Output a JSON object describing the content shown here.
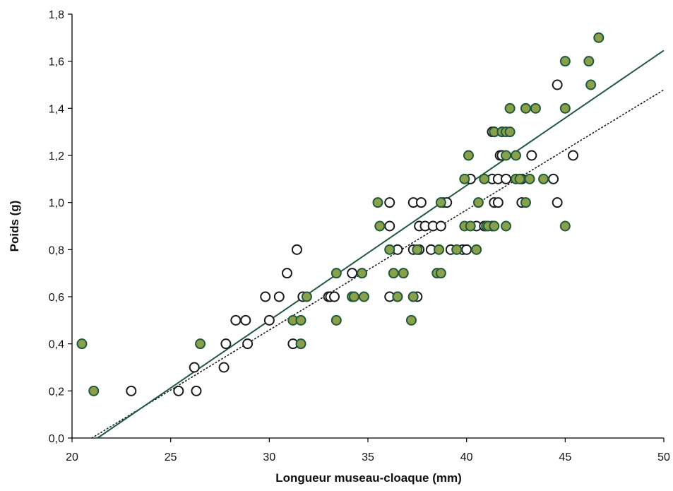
{
  "chart_data": {
    "type": "scatter",
    "xlabel": "Longueur museau-cloaque (mm)",
    "ylabel": "Poids (g)",
    "xlim": [
      20,
      50
    ],
    "ylim": [
      0,
      1.8
    ],
    "x_ticks": [
      20,
      25,
      30,
      35,
      40,
      45,
      50
    ],
    "y_ticks": [
      0,
      0.2,
      0.4,
      0.6,
      0.8,
      1.0,
      1.2,
      1.4,
      1.6,
      1.8
    ],
    "decimal_separator": ",",
    "y_tick_decimals": 1,
    "grid": false,
    "legend": "none",
    "series": [
      {
        "marker": "open-circle",
        "fill": "#ffffff",
        "stroke": "#1a1a1a",
        "trendline": {
          "slope": 0.051,
          "intercept": -1.0714,
          "style": "dotted",
          "color": "#1a1a1a"
        },
        "points": [
          [
            23.0,
            0.2
          ],
          [
            25.4,
            0.2
          ],
          [
            26.3,
            0.2
          ],
          [
            26.2,
            0.3
          ],
          [
            27.7,
            0.3
          ],
          [
            27.8,
            0.4
          ],
          [
            28.9,
            0.4
          ],
          [
            31.2,
            0.4
          ],
          [
            28.3,
            0.5
          ],
          [
            28.8,
            0.5
          ],
          [
            30.0,
            0.5
          ],
          [
            29.8,
            0.6
          ],
          [
            30.5,
            0.6
          ],
          [
            31.7,
            0.6
          ],
          [
            33.0,
            0.6
          ],
          [
            33.1,
            0.6
          ],
          [
            33.3,
            0.6
          ],
          [
            34.2,
            0.6
          ],
          [
            36.1,
            0.6
          ],
          [
            36.5,
            0.6
          ],
          [
            37.3,
            0.6
          ],
          [
            37.5,
            0.6
          ],
          [
            30.9,
            0.7
          ],
          [
            34.2,
            0.7
          ],
          [
            31.4,
            0.8
          ],
          [
            36.5,
            0.8
          ],
          [
            37.3,
            0.8
          ],
          [
            37.6,
            0.8
          ],
          [
            38.2,
            0.8
          ],
          [
            39.2,
            0.8
          ],
          [
            39.8,
            0.8
          ],
          [
            40.0,
            0.8
          ],
          [
            36.1,
            0.9
          ],
          [
            37.6,
            0.9
          ],
          [
            37.9,
            0.9
          ],
          [
            38.3,
            0.9
          ],
          [
            38.7,
            0.9
          ],
          [
            40.5,
            0.9
          ],
          [
            40.9,
            0.9
          ],
          [
            41.3,
            0.9
          ],
          [
            36.1,
            1.0
          ],
          [
            37.3,
            1.0
          ],
          [
            37.7,
            1.0
          ],
          [
            38.8,
            1.0
          ],
          [
            39.0,
            1.0
          ],
          [
            41.4,
            1.0
          ],
          [
            41.6,
            1.0
          ],
          [
            42.8,
            1.0
          ],
          [
            44.6,
            1.0
          ],
          [
            40.2,
            1.1
          ],
          [
            41.3,
            1.1
          ],
          [
            41.6,
            1.1
          ],
          [
            42.0,
            1.1
          ],
          [
            42.8,
            1.1
          ],
          [
            44.4,
            1.1
          ],
          [
            41.7,
            1.2
          ],
          [
            41.8,
            1.2
          ],
          [
            43.3,
            1.2
          ],
          [
            45.4,
            1.2
          ],
          [
            41.3,
            1.3
          ],
          [
            41.4,
            1.3
          ],
          [
            41.8,
            1.3
          ],
          [
            44.6,
            1.5
          ]
        ]
      },
      {
        "marker": "filled-circle",
        "fill": "#8aa04a",
        "stroke": "#1f5a3c",
        "trendline": {
          "slope": 0.05733,
          "intercept": -1.2207,
          "style": "solid",
          "color": "#1f5a3c"
        },
        "points": [
          [
            20.5,
            0.4
          ],
          [
            21.1,
            0.2
          ],
          [
            26.5,
            0.4
          ],
          [
            31.2,
            0.5
          ],
          [
            31.6,
            0.5
          ],
          [
            33.4,
            0.5
          ],
          [
            37.2,
            0.5
          ],
          [
            31.6,
            0.4
          ],
          [
            31.9,
            0.6
          ],
          [
            34.2,
            0.6
          ],
          [
            34.3,
            0.6
          ],
          [
            34.8,
            0.6
          ],
          [
            36.5,
            0.6
          ],
          [
            37.3,
            0.6
          ],
          [
            33.4,
            0.7
          ],
          [
            34.7,
            0.7
          ],
          [
            36.3,
            0.7
          ],
          [
            36.8,
            0.7
          ],
          [
            38.5,
            0.7
          ],
          [
            38.7,
            0.7
          ],
          [
            36.1,
            0.8
          ],
          [
            37.5,
            0.8
          ],
          [
            38.6,
            0.8
          ],
          [
            39.5,
            0.8
          ],
          [
            40.5,
            0.8
          ],
          [
            35.6,
            0.9
          ],
          [
            39.9,
            0.9
          ],
          [
            40.2,
            0.9
          ],
          [
            41.0,
            0.9
          ],
          [
            41.1,
            0.9
          ],
          [
            41.4,
            0.9
          ],
          [
            42.0,
            0.9
          ],
          [
            45.0,
            0.9
          ],
          [
            35.5,
            1.0
          ],
          [
            38.7,
            1.0
          ],
          [
            40.6,
            1.0
          ],
          [
            43.0,
            1.0
          ],
          [
            39.9,
            1.1
          ],
          [
            40.9,
            1.1
          ],
          [
            42.5,
            1.1
          ],
          [
            42.7,
            1.1
          ],
          [
            43.2,
            1.1
          ],
          [
            43.9,
            1.1
          ],
          [
            40.1,
            1.2
          ],
          [
            42.0,
            1.2
          ],
          [
            42.5,
            1.2
          ],
          [
            41.4,
            1.3
          ],
          [
            41.8,
            1.3
          ],
          [
            42.0,
            1.3
          ],
          [
            42.2,
            1.3
          ],
          [
            42.2,
            1.4
          ],
          [
            43.0,
            1.4
          ],
          [
            43.5,
            1.4
          ],
          [
            45.0,
            1.4
          ],
          [
            46.3,
            1.5
          ],
          [
            45.0,
            1.6
          ],
          [
            46.2,
            1.6
          ],
          [
            46.7,
            1.7
          ]
        ]
      }
    ]
  }
}
